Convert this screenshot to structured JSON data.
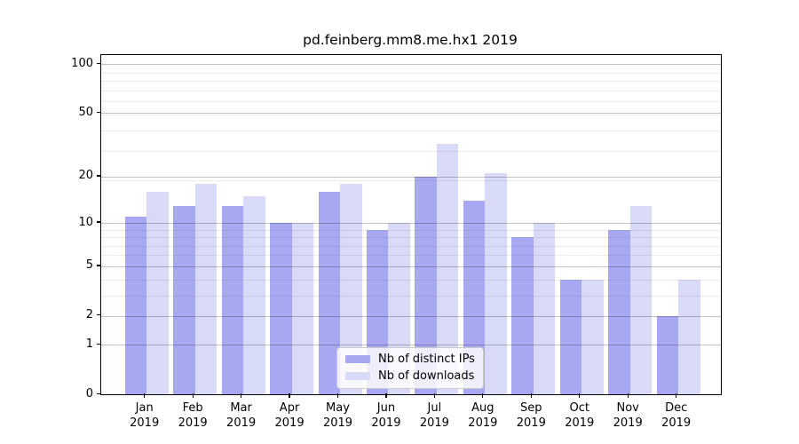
{
  "title": "pd.feinberg.mm8.me.hx1 2019",
  "chart_data": {
    "type": "bar",
    "title": "pd.feinberg.mm8.me.hx1 2019",
    "categories": [
      "Jan 2019",
      "Feb 2019",
      "Mar 2019",
      "Apr 2019",
      "May 2019",
      "Jun 2019",
      "Jul 2019",
      "Aug 2019",
      "Sep 2019",
      "Oct 2019",
      "Nov 2019",
      "Dec 2019"
    ],
    "series": [
      {
        "name": "Nb of distinct IPs",
        "color": "#a8a8f2",
        "values": [
          11,
          13,
          13,
          10,
          16,
          9,
          20,
          14,
          8,
          4,
          9,
          2
        ]
      },
      {
        "name": "Nb of downloads",
        "color": "#d9d9f8",
        "values": [
          16,
          18,
          15,
          10,
          18,
          10,
          32,
          21,
          10,
          4,
          13,
          4
        ]
      }
    ],
    "xlabel": "",
    "ylabel": "",
    "y_axis": {
      "scale": "log1p",
      "tick_values": [
        0,
        1,
        2,
        5,
        10,
        20,
        50,
        100
      ],
      "minor_grid_values": [
        3,
        4,
        6,
        7,
        8,
        9,
        19,
        29,
        39,
        49,
        59,
        69,
        79,
        89
      ],
      "ylim": [
        0,
        114
      ]
    },
    "grid": true,
    "legend_position": "lower-center"
  },
  "colors": {
    "axis": "#000000",
    "grid_major": "rgba(0,0,0,0.24)",
    "grid_minor": "rgba(0,0,0,0.07)",
    "legend_border": "#cccccc",
    "background": "#ffffff"
  }
}
